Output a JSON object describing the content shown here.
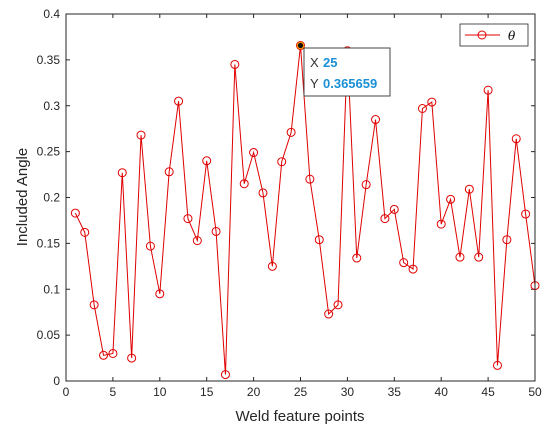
{
  "chart_data": {
    "type": "line",
    "title": "",
    "xlabel": "Weld feature points",
    "ylabel": "Included Angle",
    "xlim": [
      0,
      50
    ],
    "ylim": [
      0,
      0.4
    ],
    "xticks": [
      0,
      5,
      10,
      15,
      20,
      25,
      30,
      35,
      40,
      45,
      50
    ],
    "yticks": [
      0,
      0.05,
      0.1,
      0.15,
      0.2,
      0.25,
      0.3,
      0.35,
      0.4
    ],
    "xtick_labels": [
      "0",
      "5",
      "10",
      "15",
      "20",
      "25",
      "30",
      "35",
      "40",
      "45",
      "50"
    ],
    "ytick_labels": [
      "0",
      "0.05",
      "0.1",
      "0.15",
      "0.2",
      "0.25",
      "0.3",
      "0.35",
      "0.4"
    ],
    "grid": false,
    "legend_position": "top-right",
    "series": [
      {
        "name": "θ",
        "color": "#e00000",
        "marker": "circle",
        "x": [
          1,
          2,
          3,
          4,
          5,
          6,
          7,
          8,
          9,
          10,
          11,
          12,
          13,
          14,
          15,
          16,
          17,
          18,
          19,
          20,
          21,
          22,
          23,
          24,
          25,
          26,
          27,
          28,
          29,
          30,
          31,
          32,
          33,
          34,
          35,
          36,
          37,
          38,
          39,
          40,
          41,
          42,
          43,
          44,
          45,
          46,
          47,
          48,
          49,
          50
        ],
        "y": [
          0.183,
          0.162,
          0.083,
          0.028,
          0.03,
          0.227,
          0.025,
          0.268,
          0.147,
          0.095,
          0.228,
          0.305,
          0.177,
          0.153,
          0.24,
          0.163,
          0.007,
          0.345,
          0.215,
          0.249,
          0.205,
          0.125,
          0.239,
          0.271,
          0.365659,
          0.22,
          0.154,
          0.073,
          0.083,
          0.36,
          0.134,
          0.214,
          0.285,
          0.177,
          0.187,
          0.129,
          0.122,
          0.297,
          0.304,
          0.171,
          0.198,
          0.135,
          0.209,
          0.135,
          0.317,
          0.017,
          0.154,
          0.264,
          0.182,
          0.104
        ]
      }
    ],
    "datatip": {
      "x_label": "X",
      "x_value": "25",
      "y_label": "Y",
      "y_value": "0.365659",
      "point_index": 24
    }
  }
}
